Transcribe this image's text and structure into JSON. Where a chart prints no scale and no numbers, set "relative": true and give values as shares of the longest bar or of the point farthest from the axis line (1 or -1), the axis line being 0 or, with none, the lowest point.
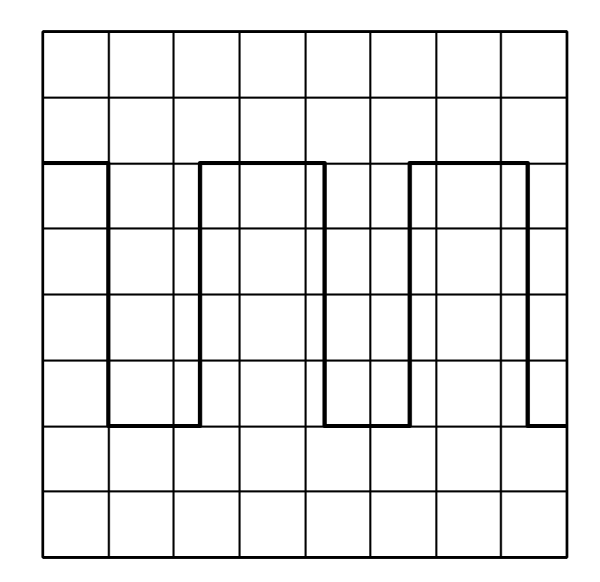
{
  "chart_data": {
    "type": "step",
    "relative": true,
    "grid": true,
    "categories": [
      null,
      null,
      null,
      null,
      null,
      null,
      null,
      null,
      null,
      null,
      null,
      null,
      null,
      null,
      null,
      null,
      null,
      null,
      null,
      null,
      null,
      null,
      null,
      null,
      null,
      null,
      null,
      null,
      null,
      null,
      null,
      null,
      null,
      null,
      null,
      null,
      null,
      null,
      null,
      null,
      null,
      null,
      null,
      null,
      null,
      null,
      null,
      null,
      null,
      null,
      null,
      null,
      null,
      null,
      null,
      null,
      null,
      null,
      null,
      null,
      null,
      null,
      null,
      null,
      null,
      null,
      null,
      null,
      null,
      null,
      null,
      null,
      null,
      null,
      null,
      null,
      null,
      null,
      null,
      null,
      null
    ],
    "series": [
      {
        "color": "#000000",
        "values": [
          1,
          1,
          1,
          1,
          1,
          1,
          1,
          1,
          1,
          1,
          -1,
          -1,
          -1,
          -1,
          -1,
          -1,
          -1,
          -1,
          -1,
          -1,
          -1,
          -1,
          -1,
          -1,
          1,
          1,
          1,
          1,
          1,
          1,
          1,
          1,
          1,
          1,
          1,
          1,
          1,
          1,
          1,
          1,
          1,
          1,
          1,
          -1,
          -1,
          -1,
          -1,
          -1,
          -1,
          -1,
          -1,
          -1,
          -1,
          -1,
          -1,
          -1,
          1,
          1,
          1,
          1,
          1,
          1,
          1,
          1,
          1,
          1,
          1,
          1,
          1,
          1,
          1,
          1,
          1,
          1,
          -1,
          -1,
          -1,
          -1,
          -1,
          -1,
          -1
        ]
      }
    ]
  }
}
